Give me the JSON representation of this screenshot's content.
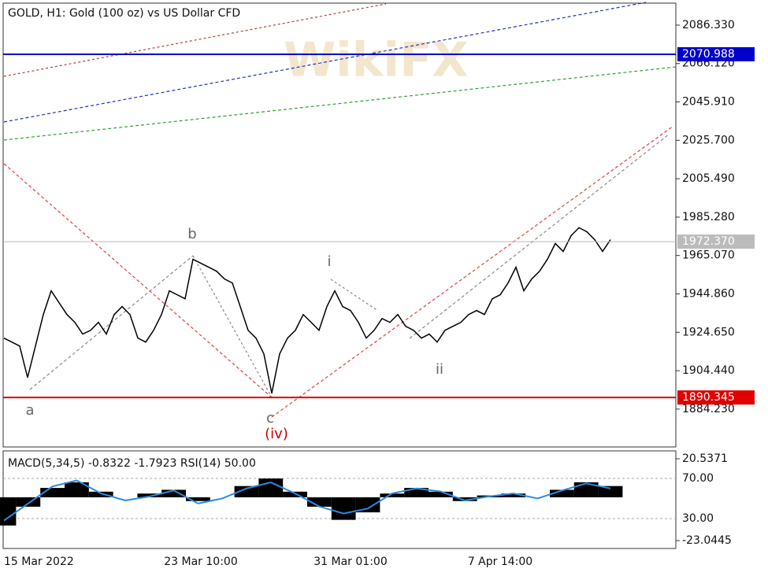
{
  "chart_data": [
    {
      "type": "line",
      "title": "GOLD, H1:  Gold (100 oz) vs US Dollar CFD",
      "watermark": "WikiFX",
      "categories": [
        "15 Mar 2022",
        null,
        null,
        null,
        null,
        null,
        null,
        null,
        null,
        null,
        null,
        null,
        null,
        null,
        null,
        null,
        null,
        null,
        null,
        null,
        null,
        null,
        null,
        null,
        null,
        "23 Mar 10:00",
        null,
        null,
        null,
        null,
        null,
        null,
        null,
        null,
        null,
        null,
        null,
        null,
        null,
        null,
        null,
        null,
        null,
        null,
        "31 Mar 01:00",
        null,
        null,
        null,
        null,
        null,
        null,
        null,
        null,
        null,
        null,
        null,
        null,
        null,
        null,
        null,
        null,
        null,
        null,
        "7 Apr 14:00",
        null,
        null,
        null,
        null,
        null,
        null,
        null,
        null,
        null,
        null,
        null,
        null,
        null,
        null
      ],
      "series": [
        {
          "name": "GOLD",
          "color": "#000000",
          "values": [
            1921.6,
            1919.5,
            1917.4,
            1900.8,
            1917.4,
            1934.0,
            1946.5,
            1940.2,
            1934.0,
            1929.9,
            1923.7,
            1925.7,
            1929.9,
            1923.7,
            1934.0,
            1938.2,
            1934.0,
            1921.6,
            1919.5,
            1925.7,
            1934.0,
            1946.5,
            1944.4,
            1942.3,
            1963.1,
            1961.0,
            1958.9,
            1956.8,
            1952.7,
            1950.6,
            1938.2,
            1925.7,
            1921.6,
            1913.3,
            1892.5,
            1913.3,
            1921.6,
            1925.7,
            1934.0,
            1929.9,
            1925.7,
            1938.2,
            1946.5,
            1938.2,
            1936.1,
            1929.9,
            1921.6,
            1925.7,
            1931.9,
            1929.9,
            1934.0,
            1927.8,
            1925.7,
            1921.6,
            1923.7,
            1919.5,
            1925.7,
            1927.8,
            1929.9,
            1934.0,
            1936.1,
            1934.0,
            1942.3,
            1944.4,
            1950.6,
            1958.9,
            1946.5,
            1952.7,
            1956.8,
            1963.1,
            1971.4,
            1967.2,
            1975.5,
            1979.7,
            1977.6,
            1973.4,
            1967.2,
            1973.4
          ]
        }
      ],
      "ylim": [
        1864.3,
        2097.9
      ],
      "yticks": [
        {
          "value": 2086.33,
          "label": "2086.330"
        },
        {
          "value": 2066.12,
          "label": "2066.120"
        },
        {
          "value": 2045.91,
          "label": "2045.910"
        },
        {
          "value": 2025.7,
          "label": "2025.700"
        },
        {
          "value": 2005.49,
          "label": "2005.490"
        },
        {
          "value": 1985.28,
          "label": "1985.280"
        },
        {
          "value": 1965.07,
          "label": "1965.070"
        },
        {
          "value": 1944.86,
          "label": "1944.860"
        },
        {
          "value": 1924.65,
          "label": "1924.650"
        },
        {
          "value": 1904.44,
          "label": "1904.440"
        },
        {
          "value": 1884.23,
          "label": "1884.230"
        }
      ],
      "levels": [
        {
          "value": 2070.988,
          "color": "#0000cc"
        },
        {
          "value": 1890.345,
          "color": "#e00000"
        },
        {
          "value": 1972.37,
          "label": "1972.370",
          "color": "#bbbbbb"
        }
      ],
      "annotations": [
        {
          "text": "a",
          "color": "#666666"
        },
        {
          "text": "b",
          "color": "#666666"
        },
        {
          "text": "c",
          "color": "#666666"
        },
        {
          "text": "(iv)",
          "color": "#cc0000"
        },
        {
          "text": "i",
          "color": "#666666"
        },
        {
          "text": "ii",
          "color": "#666666"
        }
      ]
    },
    {
      "type": "macd",
      "title": "MACD(5,34,5) -0.8322 -1.7923 RSI(14) 50.00",
      "series": [
        {
          "name": "MACD",
          "color": "#000000",
          "values": [
            -15,
            -5,
            5,
            8,
            3,
            0,
            2,
            4,
            -2,
            0,
            6,
            10,
            3,
            -5,
            -12,
            -8,
            2,
            5,
            3,
            -2,
            1,
            2,
            0,
            4,
            8,
            6
          ]
        },
        {
          "name": "RSI",
          "color": "#2a8be0",
          "axis": "y2",
          "values": [
            28,
            45,
            62,
            68,
            55,
            48,
            52,
            58,
            45,
            50,
            60,
            66,
            55,
            42,
            35,
            40,
            55,
            60,
            57,
            48,
            52,
            55,
            50,
            58,
            65,
            60
          ]
        }
      ],
      "ylim": [
        -23.0445,
        20.5371
      ],
      "yticks": [
        20.5371,
        -23.0445
      ],
      "y2lim": [
        8.0,
        89.6
      ],
      "y2ticks": [
        {
          "value": 70,
          "label": "70.00"
        },
        {
          "value": 30,
          "label": "30.00"
        }
      ]
    }
  ]
}
